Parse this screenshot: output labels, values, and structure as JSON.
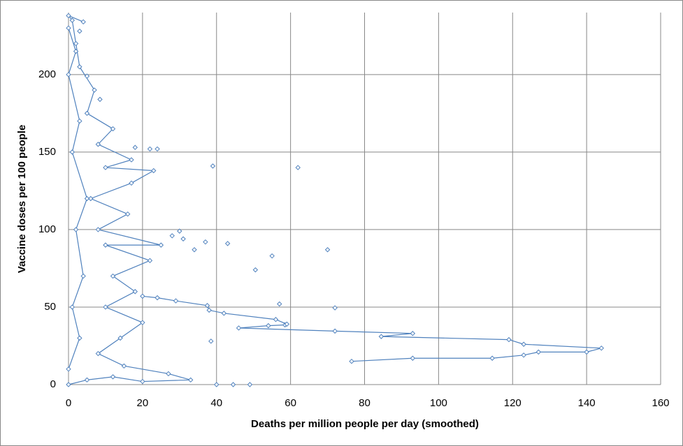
{
  "chart_data": {
    "type": "scatter",
    "x_label": "Deaths per million people per day (smoothed)",
    "y_label": "Vaccine doses per 100 people",
    "xlim": [
      0,
      160
    ],
    "xticks": [
      0,
      20,
      40,
      60,
      80,
      100,
      120,
      140,
      160
    ],
    "ylim": [
      0,
      240
    ],
    "yticks": [
      0,
      50,
      100,
      150,
      200
    ],
    "grid": true,
    "series": [
      {
        "color": "#4f81bd",
        "line": true,
        "x": [
          76.5,
          93,
          114.5,
          123,
          127,
          140,
          144,
          123,
          119,
          84.5,
          93,
          72,
          46,
          54,
          58.5,
          59,
          56,
          42,
          38,
          37.5,
          29,
          24,
          20
        ],
        "y": [
          15,
          17,
          17,
          19,
          21,
          21,
          23.5,
          26,
          29,
          31,
          33,
          34.5,
          36.5,
          38,
          38.5,
          39,
          42,
          46,
          48,
          51,
          54,
          56,
          57
        ]
      },
      {
        "color": "#4f81bd",
        "line": true,
        "x": [
          0,
          5,
          12,
          20,
          33,
          27,
          15,
          8,
          14,
          20,
          10,
          18,
          12,
          22,
          10,
          25,
          8,
          16,
          6,
          17,
          23,
          10,
          17,
          8,
          12,
          5,
          7,
          3,
          2,
          1,
          0,
          4
        ],
        "y": [
          0,
          3,
          5,
          2,
          3,
          7,
          12,
          20,
          30,
          40,
          50,
          60,
          70,
          80,
          90,
          90,
          100,
          110,
          120,
          130,
          138,
          140,
          145,
          155,
          165,
          175,
          190,
          205,
          220,
          235,
          238,
          234
        ]
      },
      {
        "color": "#4f81bd",
        "line": true,
        "x": [
          0,
          3,
          1,
          4,
          2,
          5,
          1,
          3,
          0,
          2,
          0
        ],
        "y": [
          10,
          30,
          50,
          70,
          100,
          120,
          150,
          170,
          200,
          215,
          230
        ]
      },
      {
        "color": "#4f81bd",
        "line": false,
        "x": [
          39,
          62,
          43,
          37,
          70,
          55,
          50.5,
          57,
          72,
          38.5,
          40,
          44.5,
          49,
          30,
          28,
          31,
          34,
          24,
          22,
          18,
          8.5,
          5,
          3
        ],
        "y": [
          141,
          140,
          91,
          92,
          87,
          83,
          74,
          52,
          49.5,
          28,
          0,
          0,
          0,
          99,
          96,
          94,
          87,
          152,
          152,
          153,
          184,
          199,
          228
        ]
      }
    ]
  }
}
